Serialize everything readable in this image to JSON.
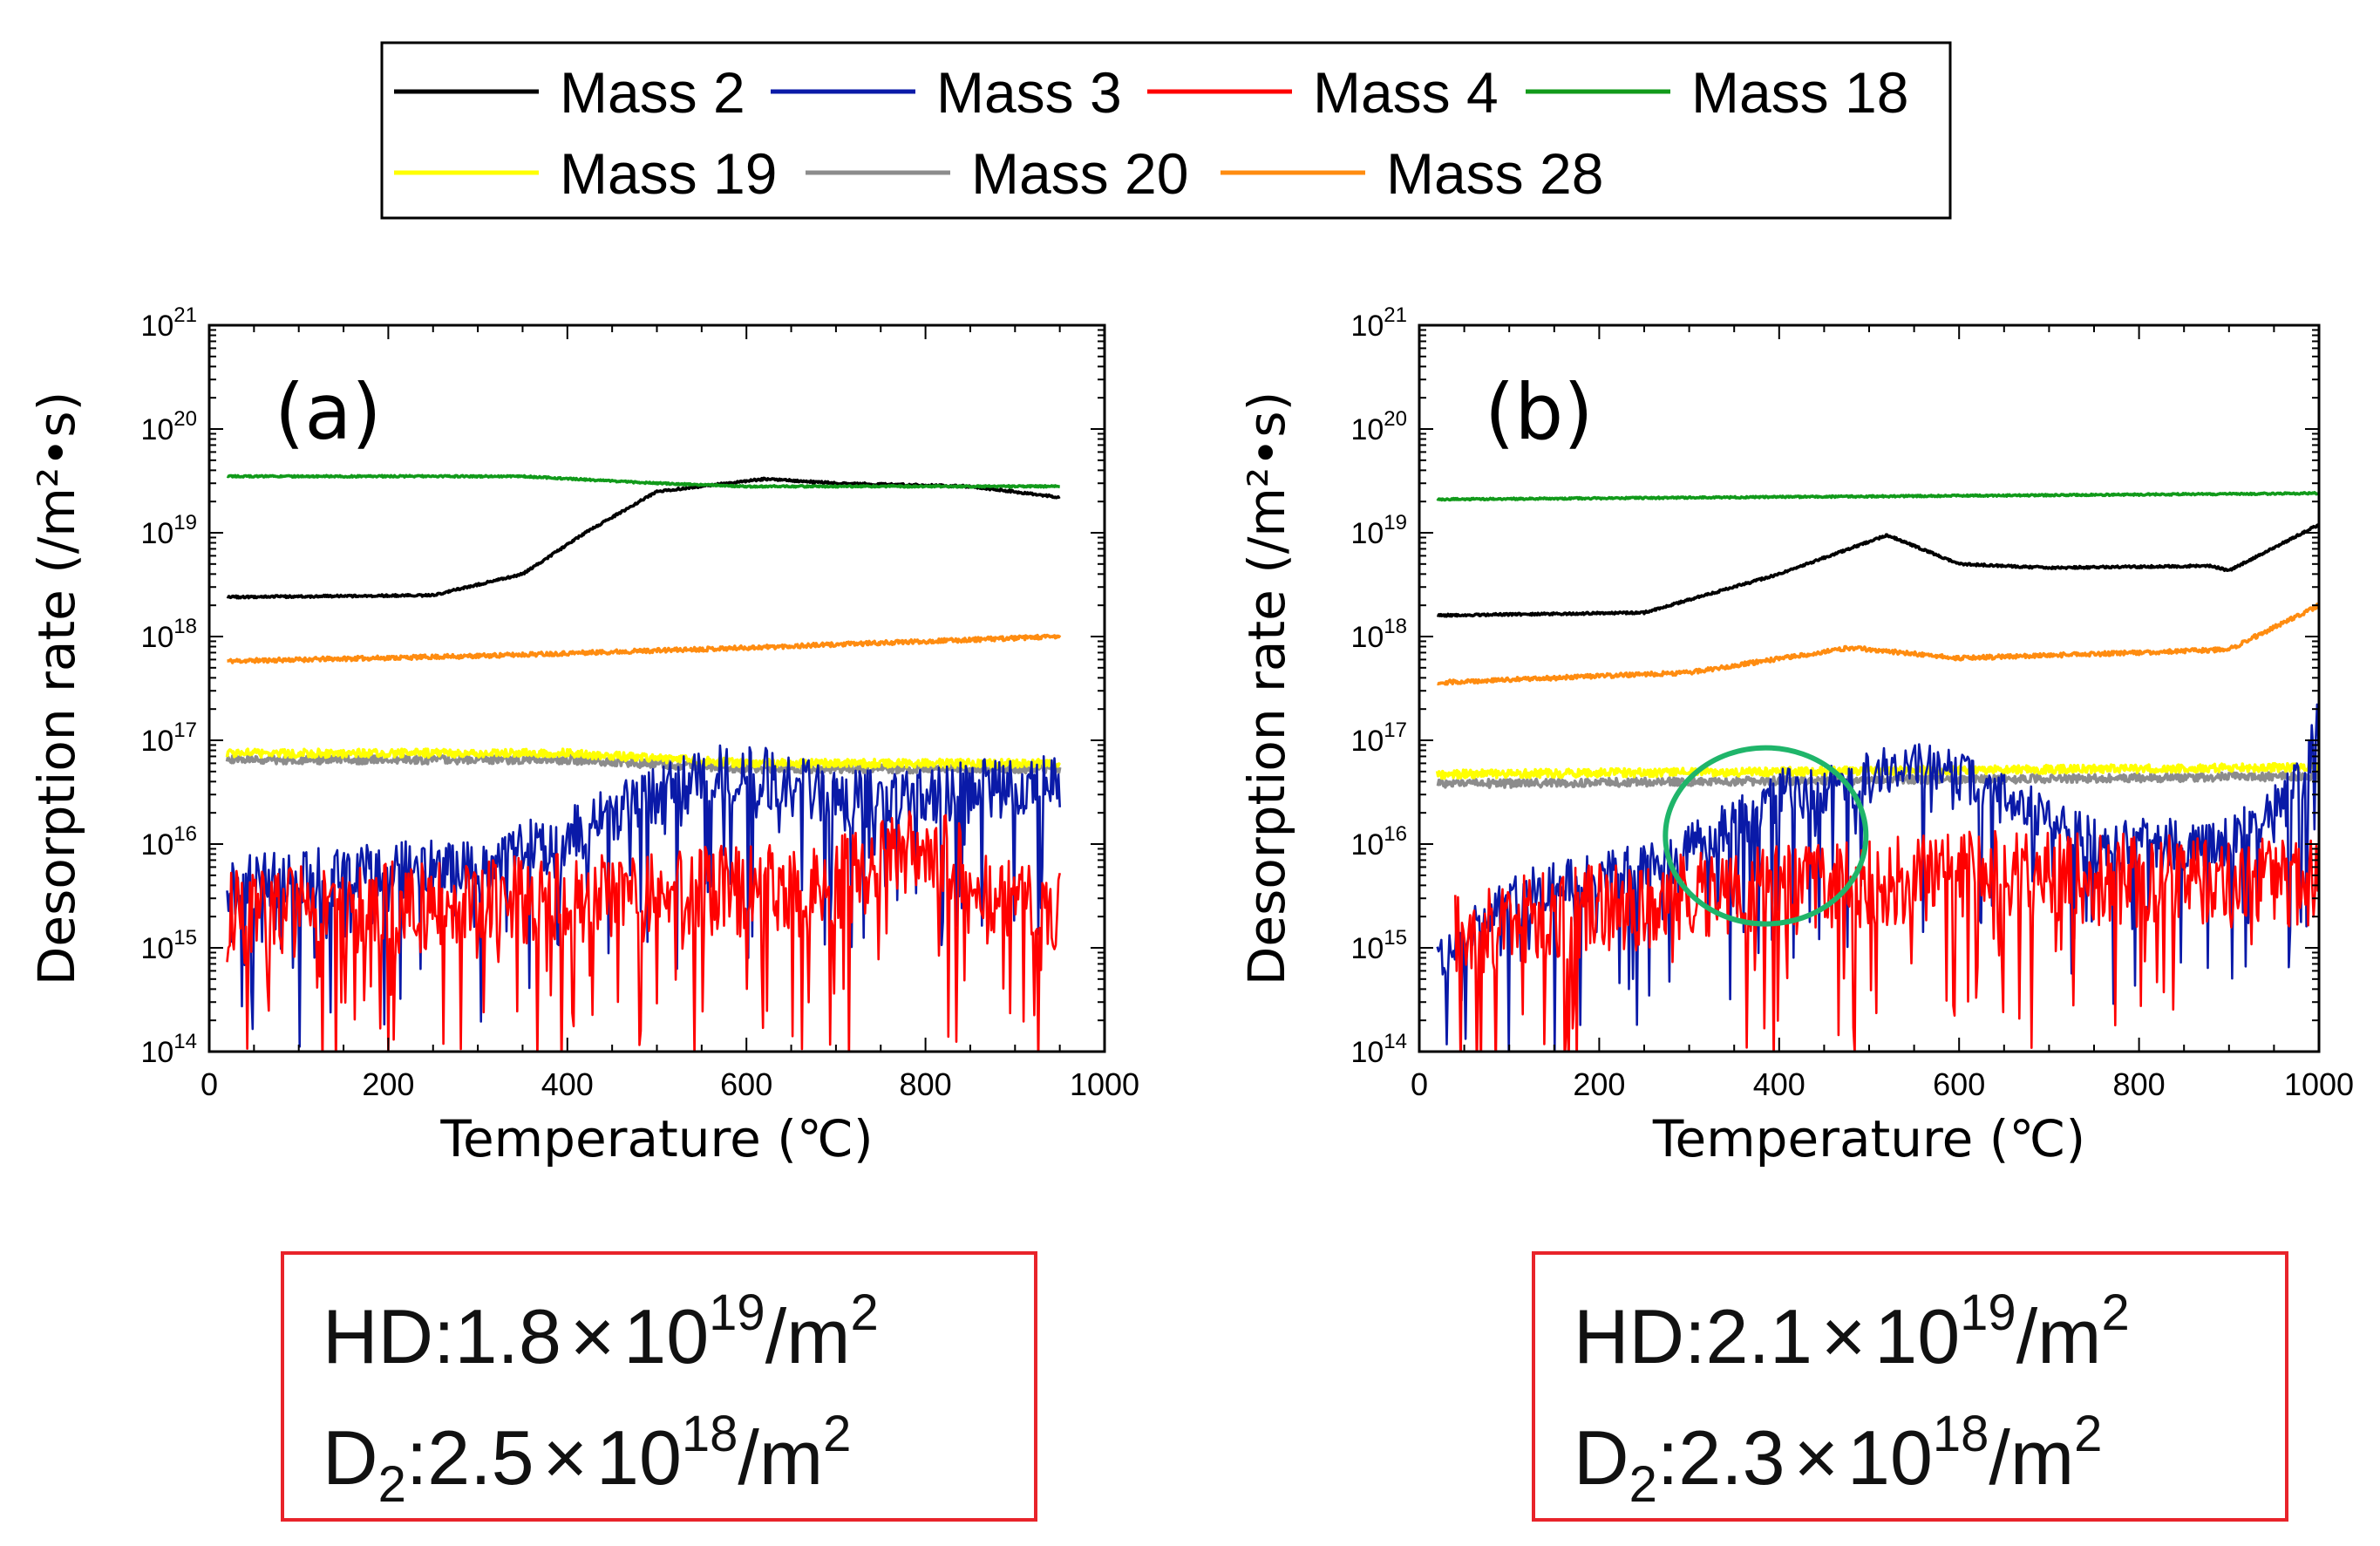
{
  "legend": {
    "items": [
      {
        "label": "Mass 2",
        "color": "#000000"
      },
      {
        "label": "Mass 3",
        "color": "#0a1aa8"
      },
      {
        "label": "Mass 4",
        "color": "#ff0000"
      },
      {
        "label": "Mass 18",
        "color": "#119a1a"
      },
      {
        "label": "Mass 19",
        "color": "#ffff00"
      },
      {
        "label": "Mass 20",
        "color": "#8c8c8c"
      },
      {
        "label": "Mass 28",
        "color": "#ff8c10"
      }
    ]
  },
  "chart_data": [
    {
      "type": "line",
      "panel_label": "(a)",
      "xlabel": "Temperature (℃)",
      "ylabel": "Desorption rate (/m²•s)",
      "xlim": [
        0,
        1000
      ],
      "ylim": [
        100000000000000.0,
        1e+21
      ],
      "yscale": "log",
      "xticks": [
        "0",
        "200",
        "400",
        "600",
        "800",
        "1000"
      ],
      "ytick_base": "10",
      "ytick_exps": [
        "14",
        "15",
        "16",
        "17",
        "18",
        "19",
        "20",
        "21"
      ],
      "series": [
        {
          "name": "Mass 28",
          "noise_decades": 0.02,
          "points": [
            [
              20,
              5.8e+17
            ],
            [
              300,
              6.5e+17
            ],
            [
              600,
              7.8e+17
            ],
            [
              950,
              1e+18
            ]
          ]
        },
        {
          "name": "Mass 20",
          "noise_decades": 0.04,
          "points": [
            [
              20,
              6.5e+16
            ],
            [
              400,
              6.5e+16
            ],
            [
              600,
              5.3e+16
            ],
            [
              950,
              5.3e+16
            ]
          ]
        },
        {
          "name": "Mass 19",
          "noise_decades": 0.04,
          "points": [
            [
              20,
              7.5e+16
            ],
            [
              400,
              7.5e+16
            ],
            [
              600,
              6e+16
            ],
            [
              950,
              6e+16
            ]
          ]
        },
        {
          "name": "Mass 3",
          "noise_decades": 0.3,
          "points": [
            [
              20,
              4000000000000000.0
            ],
            [
              300,
              6000000000000000.0
            ],
            [
              400,
              1.2e+16
            ],
            [
              550,
              4.5e+16
            ],
            [
              620,
              4.5e+16
            ],
            [
              700,
              2.7e+16
            ],
            [
              800,
              2.7e+16
            ],
            [
              950,
              4.5e+16
            ]
          ]
        },
        {
          "name": "Mass 4",
          "noise_decades": 0.45,
          "points": [
            [
              20,
              2000000000000000.0
            ],
            [
              400,
              3000000000000000.0
            ],
            [
              700,
              4000000000000000.0
            ],
            [
              800,
              1.2e+16
            ],
            [
              870,
              3000000000000000.0
            ],
            [
              950,
              2000000000000000.0
            ]
          ]
        },
        {
          "name": "Mass 2",
          "noise_decades": 0.01,
          "points": [
            [
              20,
              2.4e+18
            ],
            [
              250,
              2.5e+18
            ],
            [
              350,
              4e+18
            ],
            [
              420,
              1e+19
            ],
            [
              500,
              2.5e+19
            ],
            [
              620,
              3.3e+19
            ],
            [
              700,
              3e+19
            ],
            [
              850,
              2.8e+19
            ],
            [
              950,
              2.2e+19
            ]
          ]
        },
        {
          "name": "Mass 18",
          "noise_decades": 0.008,
          "points": [
            [
              20,
              3.5e+19
            ],
            [
              350,
              3.5e+19
            ],
            [
              500,
              3e+19
            ],
            [
              600,
              2.8e+19
            ],
            [
              950,
              2.8e+19
            ]
          ]
        }
      ]
    },
    {
      "type": "line",
      "panel_label": "(b)",
      "xlabel": "Temperature (℃)",
      "ylabel": "Desorption rate (/m²•s)",
      "xlim": [
        0,
        1000
      ],
      "ylim": [
        100000000000000.0,
        1e+21
      ],
      "yscale": "log",
      "xticks": [
        "0",
        "200",
        "400",
        "600",
        "800",
        "1000"
      ],
      "ytick_base": "10",
      "ytick_exps": [
        "14",
        "15",
        "16",
        "17",
        "18",
        "19",
        "20",
        "21"
      ],
      "highlight": {
        "shape": "ellipse",
        "center": [
          385,
          1.2e+16
        ],
        "color": "#1fb56a"
      },
      "series": [
        {
          "name": "Mass 28",
          "noise_decades": 0.02,
          "points": [
            [
              20,
              3.6e+17
            ],
            [
              300,
              4.5e+17
            ],
            [
              480,
              7.8e+17
            ],
            [
              600,
              6.2e+17
            ],
            [
              800,
              7e+17
            ],
            [
              900,
              7.5e+17
            ],
            [
              1000,
              2e+18
            ]
          ]
        },
        {
          "name": "Mass 20",
          "noise_decades": 0.04,
          "points": [
            [
              20,
              3.8e+16
            ],
            [
              1000,
              4.5e+16
            ]
          ]
        },
        {
          "name": "Mass 19",
          "noise_decades": 0.04,
          "points": [
            [
              20,
              4.7e+16
            ],
            [
              1000,
              5.5e+16
            ]
          ]
        },
        {
          "name": "Mass 3",
          "noise_decades": 0.25,
          "points": [
            [
              20,
              700000000000000.0
            ],
            [
              100,
              3000000000000000.0
            ],
            [
              280,
              7000000000000000.0
            ],
            [
              400,
              3e+16
            ],
            [
              470,
              3.5e+16
            ],
            [
              550,
              6e+16
            ],
            [
              650,
              3e+16
            ],
            [
              750,
              1e+16
            ],
            [
              900,
              1e+16
            ],
            [
              980,
              4e+16
            ],
            [
              1000,
              1.5e+17
            ]
          ]
        },
        {
          "name": "Mass 4",
          "noise_decades": 0.45,
          "points": [
            [
              40,
              1500000000000000.0
            ],
            [
              300,
              3000000000000000.0
            ],
            [
              600,
              5000000000000000.0
            ],
            [
              1000,
              4000000000000000.0
            ]
          ]
        },
        {
          "name": "Mass 2",
          "noise_decades": 0.01,
          "points": [
            [
              20,
              1.6e+18
            ],
            [
              250,
              1.7e+18
            ],
            [
              400,
              4e+18
            ],
            [
              520,
              9.5e+18
            ],
            [
              600,
              5e+18
            ],
            [
              700,
              4.6e+18
            ],
            [
              880,
              4.8e+18
            ],
            [
              900,
              4.3e+18
            ],
            [
              1000,
              1.2e+19
            ]
          ]
        },
        {
          "name": "Mass 18",
          "noise_decades": 0.008,
          "points": [
            [
              20,
              2.1e+19
            ],
            [
              1000,
              2.4e+19
            ]
          ]
        }
      ]
    }
  ],
  "summaries": [
    {
      "line1": {
        "label": "HD",
        "sub": "",
        "mantissa": ":1.8",
        "times": "×",
        "base": "10",
        "exp": "19",
        "unit": "/m",
        "unit_exp": "2"
      },
      "line2": {
        "label": "D",
        "sub": "2",
        "mantissa": ":2.5",
        "times": "×",
        "base": "10",
        "exp": "18",
        "unit": "/m",
        "unit_exp": "2"
      }
    },
    {
      "line1": {
        "label": "HD",
        "sub": "",
        "mantissa": ":2.1",
        "times": "×",
        "base": "10",
        "exp": "19",
        "unit": "/m",
        "unit_exp": "2"
      },
      "line2": {
        "label": "D",
        "sub": "2",
        "mantissa": ":2.3",
        "times": "×",
        "base": "10",
        "exp": "18",
        "unit": "/m",
        "unit_exp": "2"
      }
    }
  ]
}
